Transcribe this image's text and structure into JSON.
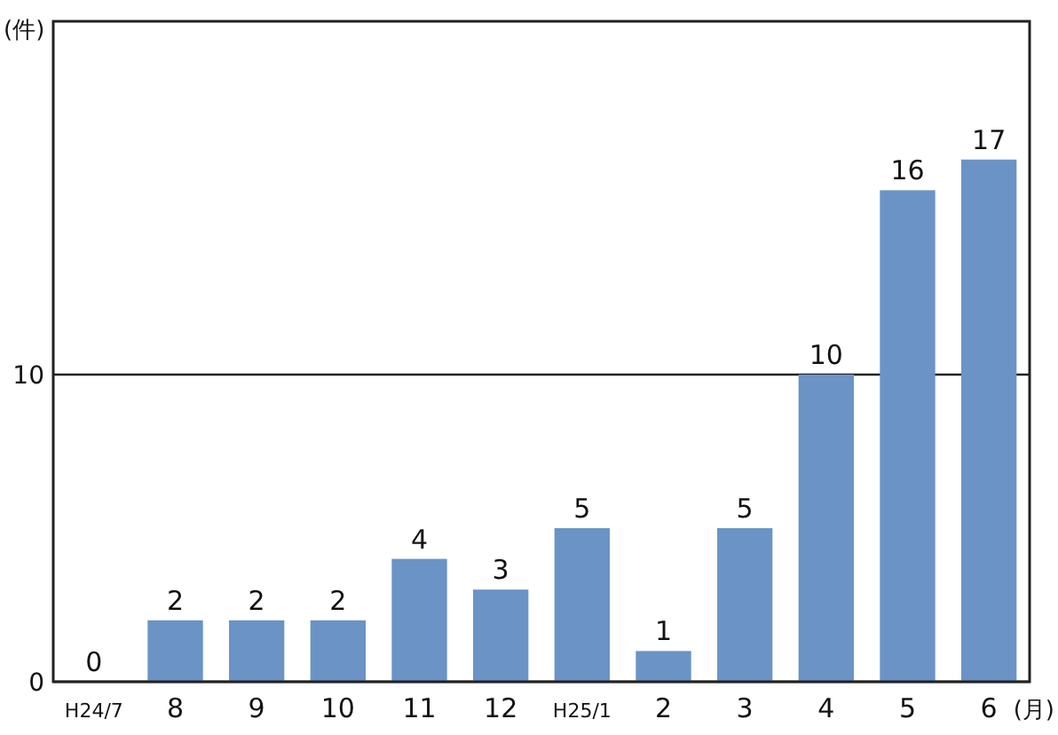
{
  "chart_data": {
    "type": "bar",
    "ylabel": "(件)",
    "xlabel": "(月)",
    "categories": [
      "H24/7",
      "8",
      "9",
      "10",
      "11",
      "12",
      "H25/1",
      "2",
      "3",
      "4",
      "5",
      "6"
    ],
    "values": [
      0,
      2,
      2,
      2,
      4,
      3,
      5,
      1,
      5,
      10,
      16,
      17
    ],
    "color": "#6b93c6",
    "ylim": [
      0,
      21.5
    ],
    "yticks": [
      0,
      10
    ],
    "grid": "y",
    "data_labels": true
  }
}
